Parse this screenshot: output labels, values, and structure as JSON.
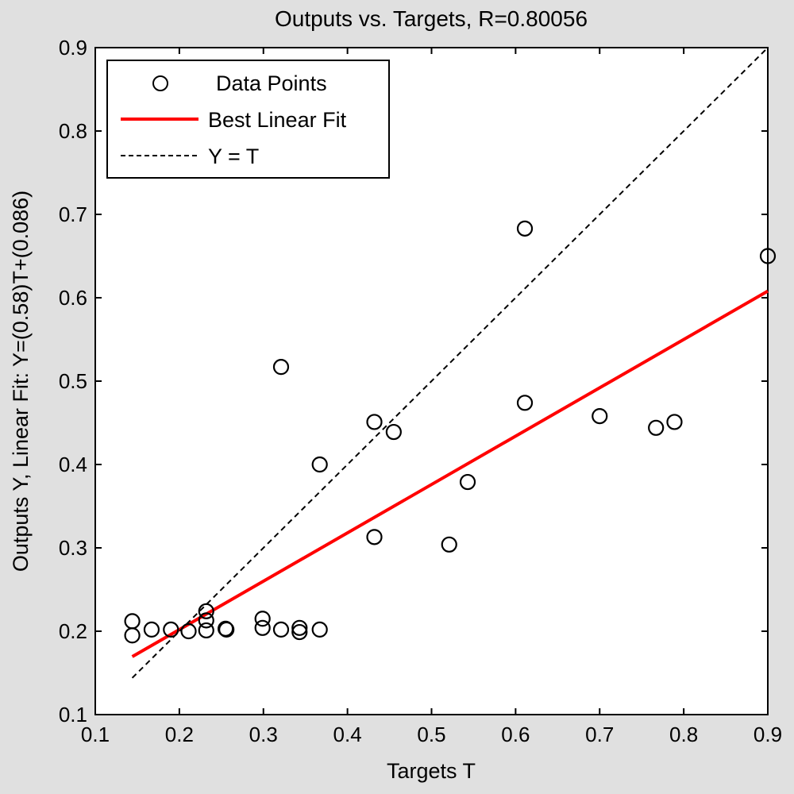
{
  "chart_data": {
    "type": "scatter",
    "title": "Outputs vs. Targets, R=0.80056",
    "xlabel": "Targets T",
    "ylabel": "Outputs Y,  Linear Fit: Y=(0.58)T+(0.086)",
    "xlim": [
      0.1,
      0.9
    ],
    "ylim": [
      0.1,
      0.9
    ],
    "xticks": [
      "0.1",
      "0.2",
      "0.3",
      "0.4",
      "0.5",
      "0.6",
      "0.7",
      "0.8",
      "0.9"
    ],
    "yticks": [
      "0.1",
      "0.2",
      "0.3",
      "0.4",
      "0.5",
      "0.6",
      "0.7",
      "0.8",
      "0.9"
    ],
    "grid": false,
    "legend_position": "top-left",
    "legend": [
      {
        "label": "Data Points",
        "style": "circle"
      },
      {
        "label": "Best Linear Fit",
        "style": "red-line"
      },
      {
        "label": "Y = T",
        "style": "dashed-line"
      }
    ],
    "series": [
      {
        "name": "Data Points",
        "kind": "markers",
        "points": [
          [
            0.144,
            0.212
          ],
          [
            0.144,
            0.195
          ],
          [
            0.167,
            0.202
          ],
          [
            0.19,
            0.202
          ],
          [
            0.211,
            0.2
          ],
          [
            0.232,
            0.224
          ],
          [
            0.232,
            0.213
          ],
          [
            0.232,
            0.201
          ],
          [
            0.255,
            0.203
          ],
          [
            0.256,
            0.202
          ],
          [
            0.299,
            0.215
          ],
          [
            0.299,
            0.204
          ],
          [
            0.321,
            0.202
          ],
          [
            0.343,
            0.204
          ],
          [
            0.343,
            0.199
          ],
          [
            0.367,
            0.202
          ],
          [
            0.321,
            0.517
          ],
          [
            0.367,
            0.4
          ],
          [
            0.432,
            0.451
          ],
          [
            0.455,
            0.439
          ],
          [
            0.432,
            0.313
          ],
          [
            0.521,
            0.304
          ],
          [
            0.543,
            0.379
          ],
          [
            0.611,
            0.683
          ],
          [
            0.611,
            0.474
          ],
          [
            0.7,
            0.458
          ],
          [
            0.767,
            0.444
          ],
          [
            0.789,
            0.451
          ],
          [
            0.9,
            0.65
          ]
        ]
      },
      {
        "name": "Best Linear Fit",
        "kind": "line",
        "color": "#ff0000",
        "slope": 0.58,
        "intercept": 0.086,
        "x_range": [
          0.144,
          0.9
        ]
      },
      {
        "name": "Y = T",
        "kind": "dashed-line",
        "color": "#000000",
        "x_range": [
          0.144,
          0.9
        ]
      }
    ]
  }
}
